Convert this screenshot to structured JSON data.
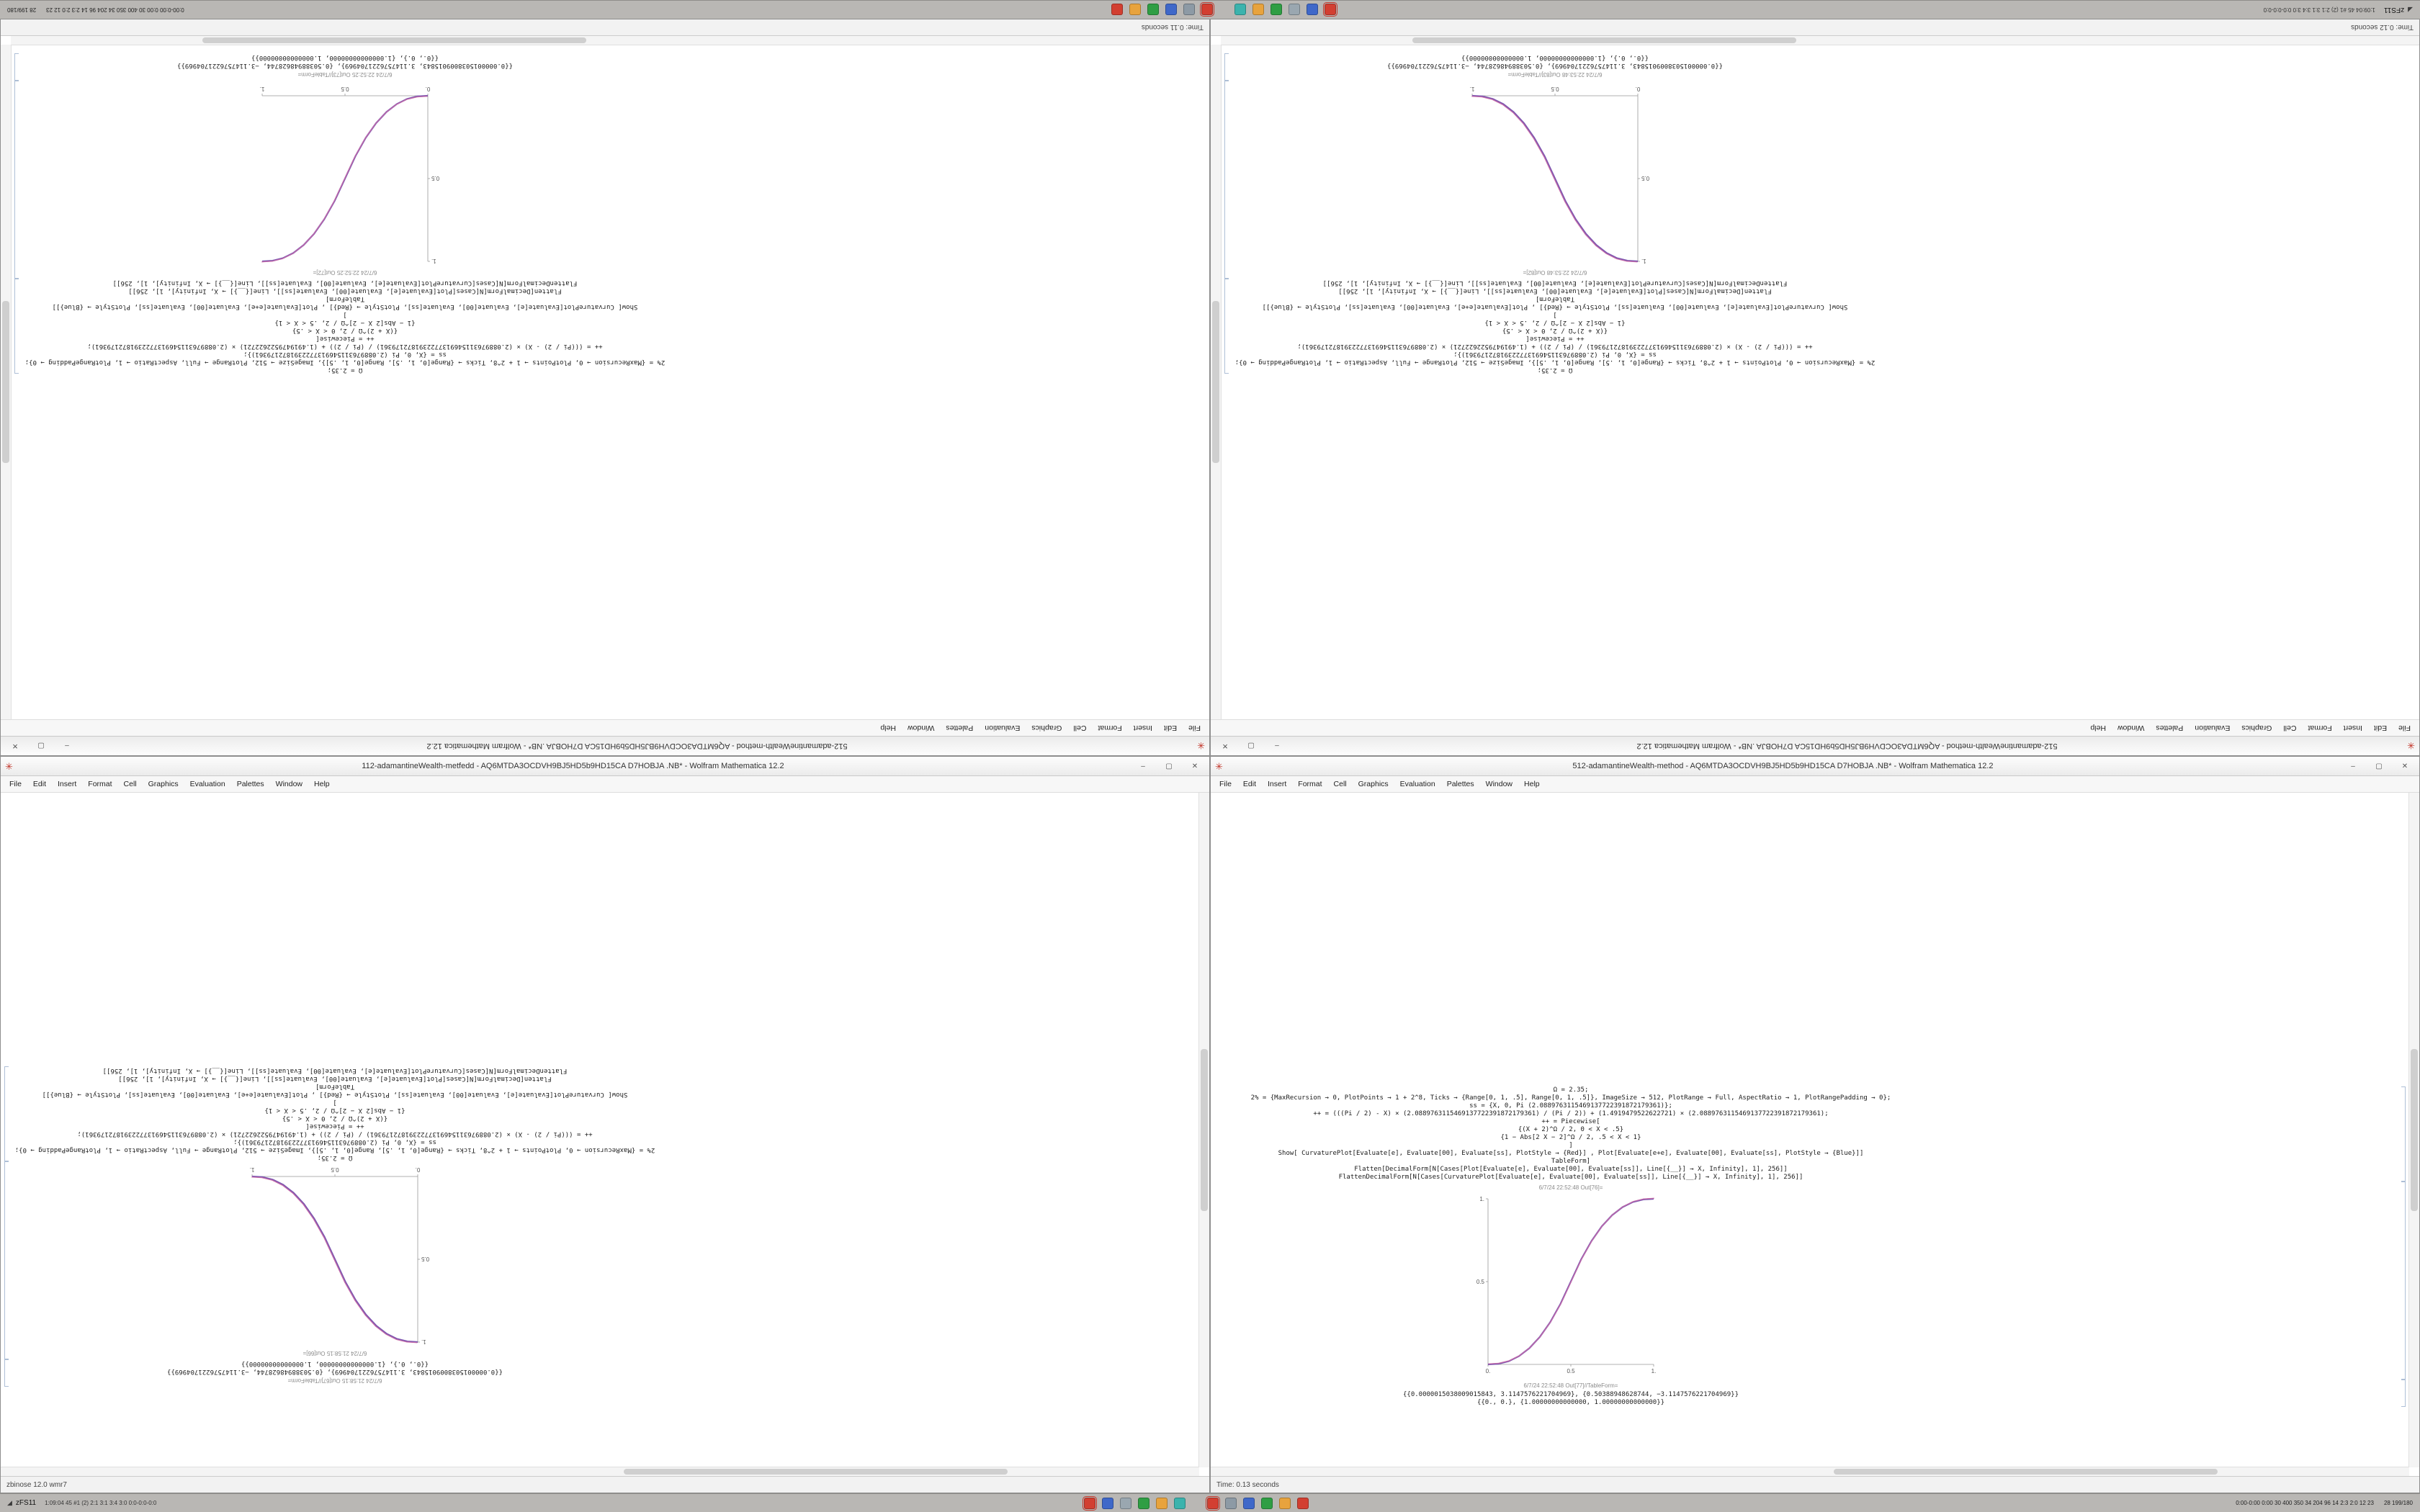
{
  "colors": {
    "curve_pink": "#c76ba8",
    "curve_purple": "#7d57b0",
    "accent_red": "#c43a2e"
  },
  "icons": {
    "app": "✳",
    "minimize": "–",
    "maximize": "▢",
    "close": "✕",
    "start": "◢"
  },
  "desktop": {
    "taskbar": {
      "start_label": "zFS11",
      "start_stats": "1:09:04 45 #1 (2) 2:1 3:1 3:4 3:0 0:0-0:0-0:0",
      "cluster1": [
        "#d23f31",
        "#3f68c9",
        "#9aa7b0",
        "#2f9e44",
        "#e8a33d",
        "#3bb3ad"
      ],
      "cluster2": [
        "#d23f31",
        "#8d9aa5",
        "#3f68c9",
        "#2f9e44",
        "#e8a33d",
        "#d23f31"
      ],
      "tray_text": "0:00-0:00 0:00 30 400 350 34 204 96 14 2:3 2:0 12 23",
      "clock": "28 199/180"
    }
  },
  "window_common": {
    "menu": [
      "File",
      "Edit",
      "Insert",
      "Format",
      "Cell",
      "Graphics",
      "Evaluation",
      "Palettes",
      "Window",
      "Help"
    ]
  },
  "notebooks": [
    {
      "title": "512-adamantineWealth-method - AQ6MTDA3OCDVH9BJ5HD5b9HD15CA D7HOBJA .NB* - Wolfram Mathematica 12.2",
      "status": "Time: 0.11 seconds",
      "rotation": "full",
      "order": "normal",
      "top_gap": 480,
      "col_left": 700,
      "code": [
        "Ω = 2.35;",
        "2% = {MaxRecursion → 0, PlotPoints → 1 + 2^8, Ticks → {Range[0, 1, .5], Range[0, 1, .5]}, ImageSize → 512, PlotRange → Full, AspectRatio → 1, PlotRangePadding → 0};",
        "ss = {X, 0, Pi (2.0889763115469137722391872179361)};",
        "++ = (((Pi / 2) - X) × (2.0889763115469137722391872179361) / (Pi / 2)) + (1.4919479522622721) × (2.0889763115469137722391872179361);",
        "++ = Piecewise[",
        "{(X + 2)^Ω / 2, 0 < X < .5}",
        "{1 − Abs[2 X − 2]^Ω / 2, .5 < X < 1}",
        "]",
        "Show[ CurvaturePlot[Evaluate[e], Evaluate[00], Evaluate[ss], PlotStyle → {Red}] , Plot[Evaluate[e+e], Evaluate[00], Evaluate[ss], PlotStyle → {Blue}]]",
        "TableForm]",
        "Flatten[DecimalForm[N[Cases[Plot[Evaluate[e], Evaluate[00], Evaluate[ss]], Line[{__}] → X, Infinity], 1], 256]]",
        "FlattenDecimalForm[N[Cases[CurvaturePlot[Evaluate[e], Evaluate[00], Evaluate[ss]], Line[{__}] → X, Infinity], 1], 256]]"
      ],
      "out_plot_label": "6/7/24 22:52:25 Out[72]=",
      "out_table_label": "6/7/24 22:52:25 Out[73]//TableForm=",
      "table_rows": [
        "{{0.0000015038009015843, 3.1147576221704969}, {0.50388948628744, −3.1147576221704969}}",
        "{{0., 0.}, {1.00000000000000, 1.00000000000000}}"
      ]
    },
    {
      "title": "512-adamantineWealth-method - AQ6MTDA3OCDVH9BJ5HD5b9HD15CA D7HOBJA .NB* - Wolfram Mathematica 12.2",
      "status": "Time: 0.12 seconds",
      "rotation": "full",
      "order": "normal",
      "top_gap": 480,
      "col_left": 700,
      "code": [
        "Ω = 2.35;",
        "2% = {MaxRecursion → 0, PlotPoints → 1 + 2^8, Ticks → {Range[0, 1, .5], Range[0, 1, .5]}, ImageSize → 512, PlotRange → Full, AspectRatio → 1, PlotRangePadding → 0};",
        "ss = {X, 0, Pi (2.0889763115469137722391872179361)};",
        "++ = (((Pi / 2) - X) × (2.0889763115469137722391872179361) / (Pi / 2)) + (1.4919479522622721) × (2.0889763115469137722391872179361);",
        "++ = Piecewise[",
        "{(X + 2)^Ω / 2, 0 < X < .5}",
        "{1 − Abs[2 X − 2]^Ω / 2, .5 < X < 1}",
        "]",
        "Show[ CurvaturePlot[Evaluate[e], Evaluate[00], Evaluate[ss], PlotStyle → {Red}] , Plot[Evaluate[e+e], Evaluate[00], Evaluate[ss], PlotStyle → {Blue}]]",
        "TableForm]",
        "Flatten[DecimalForm[N[Cases[Plot[Evaluate[e], Evaluate[00], Evaluate[ss]], Line[{__}] → X, Infinity], 1], 256]]",
        "FlattenDecimalForm[N[Cases[CurvaturePlot[Evaluate[e], Evaluate[00], Evaluate[ss]], Line[{__}] → X, Infinity], 1], 256]]"
      ],
      "out_plot_label": "6/7/24 22:53:48 Out[82]=",
      "out_table_label": "6/7/24 22:53:48 Out[83]//TableForm=",
      "table_rows": [
        "{{0.0000015038009015843, 3.1147576221704969}, {0.50388948628744, −3.1147576221704969}}",
        "{{0., 0.}, {1.00000000000000, 1.00000000000000}}"
      ]
    },
    {
      "title": "112-adamantineWealth-metfedd - AQ6MTDA3OCDVH9BJ5HD5b9HD15CA D7HOBJA .NB* - Wolfram Mathematica 12.2",
      "status": "zbinose 12.0 wmr7",
      "rotation": "content",
      "order": "reversed",
      "top_gap": 112,
      "col_left": 700,
      "code": [
        "Ω = 2.35;",
        "2% = {MaxRecursion → 0, PlotPoints → 1 + 2^8, Ticks → {Range[0, 1, .5], Range[0, 1, .5]}, ImageSize → 512, PlotRange → Full, AspectRatio → 1, PlotRangePadding → 0};",
        "ss = {X, 0, Pi (2.0889763115469137722391872179361)};",
        "++ = (((Pi / 2) - X) × (2.0889763115469137722391872179361) / (Pi / 2)) + (1.4919479522622721) × (2.0889763115469137722391872179361);",
        "++ = Piecewise[",
        "{(X + 2)^Ω / 2, 0 < X < .5}",
        "{1 − Abs[2 X − 2]^Ω / 2, .5 < X < 1}",
        "]",
        "Show[ CurvaturePlot[Evaluate[e], Evaluate[00], Evaluate[ss], PlotStyle → {Red}] , Plot[Evaluate[e+e], Evaluate[00], Evaluate[ss], PlotStyle → {Blue}]]",
        "TableForm]",
        "Flatten[DecimalForm[N[Cases[Plot[Evaluate[e], Evaluate[00], Evaluate[ss]], Line[{__}] → X, Infinity], 1], 256]]",
        "FlattenDecimalForm[N[Cases[CurvaturePlot[Evaluate[e], Evaluate[00], Evaluate[ss]], Line[{__}] → X, Infinity], 1], 256]]"
      ],
      "out_plot_label": "6/7/24 21:58:15 Out[66]=",
      "out_table_label": "6/7/24 21:58:15 Out[67]//TableForm=",
      "table_rows": [
        "{{0.0000015038009015843, 3.1147576221704969}, {0.50388948628744, −3.1147576221704969}}",
        "{{0., 0.}, {1.00000000000000, 1.00000000000000}}"
      ]
    },
    {
      "title": "512-adamantineWealth-method - AQ6MTDA3OCDVH9BJ5HD5b9HD15CA D7HOBJA .NB* - Wolfram Mathematica 12.2",
      "status": "Time: 0.13 seconds",
      "rotation": "none",
      "order": "normal",
      "top_gap": 408,
      "col_left": 0,
      "code": [
        "Ω = 2.35;",
        "2% = {MaxRecursion → 0, PlotPoints → 1 + 2^8, Ticks → {Range[0, 1, .5], Range[0, 1, .5]}, ImageSize → 512, PlotRange → Full, AspectRatio → 1, PlotRangePadding → 0};",
        "ss = {X, 0, Pi (2.0889763115469137722391872179361)};",
        "++ = (((Pi / 2) - X) × (2.0889763115469137722391872179361) / (Pi / 2)) + (1.4919479522622721) × (2.0889763115469137722391872179361);",
        "++ = Piecewise[",
        "{(X + 2)^Ω / 2, 0 < X < .5}",
        "{1 − Abs[2 X − 2]^Ω / 2, .5 < X < 1}",
        "]",
        "Show[ CurvaturePlot[Evaluate[e], Evaluate[00], Evaluate[ss], PlotStyle → {Red}] , Plot[Evaluate[e+e], Evaluate[00], Evaluate[ss], PlotStyle → {Blue}]]",
        "TableForm]",
        "Flatten[DecimalForm[N[Cases[Plot[Evaluate[e], Evaluate[00], Evaluate[ss]], Line[{__}] → X, Infinity], 1], 256]]",
        "FlattenDecimalForm[N[Cases[CurvaturePlot[Evaluate[e], Evaluate[00], Evaluate[ss]], Line[{__}] → X, Infinity], 1], 256]]"
      ],
      "out_plot_label": "6/7/24 22:52:48 Out[76]=",
      "out_table_label": "6/7/24 22:52:48 Out[77]//TableForm=",
      "table_rows": [
        "{{0.0000015038009015843, 3.1147576221704969}, {0.50388948628744, −3.1147576221704969}}",
        "{{0., 0.}, {1.00000000000000, 1.00000000000000}}"
      ]
    }
  ],
  "chart_data": [
    {
      "type": "line",
      "title": "Out[72] piecewise power curve (increasing)",
      "x": [
        0,
        0.0625,
        0.125,
        0.1875,
        0.25,
        0.3125,
        0.375,
        0.4375,
        0.5,
        0.5625,
        0.625,
        0.6875,
        0.75,
        0.8125,
        0.875,
        0.9375,
        1
      ],
      "series": [
        {
          "name": "blended Red+Blue piecewise curve",
          "values": [
            0,
            0.0038,
            0.0192,
            0.0499,
            0.0981,
            0.1657,
            0.2543,
            0.3653,
            0.5,
            0.6347,
            0.7457,
            0.8343,
            0.9019,
            0.9501,
            0.9808,
            0.9962,
            1
          ]
        }
      ],
      "xlim": [
        0,
        1
      ],
      "ylim": [
        0,
        1
      ],
      "x_ticks": [
        {
          "v": 0,
          "label": "0."
        },
        {
          "v": 0.5,
          "label": "0.5"
        },
        {
          "v": 1,
          "label": "1."
        }
      ],
      "y_ticks": [
        {
          "v": 0.5,
          "label": "0.5"
        },
        {
          "v": 1,
          "label": "1."
        }
      ],
      "colors": [
        "#c76ba8",
        "#7d57b0"
      ]
    },
    {
      "type": "line",
      "title": "Out[82] piecewise power curve (decreasing)",
      "x": [
        0,
        0.0625,
        0.125,
        0.1875,
        0.25,
        0.3125,
        0.375,
        0.4375,
        0.5,
        0.5625,
        0.625,
        0.6875,
        0.75,
        0.8125,
        0.875,
        0.9375,
        1
      ],
      "series": [
        {
          "name": "blended Red+Blue piecewise curve",
          "values": [
            1,
            0.9962,
            0.9808,
            0.9501,
            0.9019,
            0.8343,
            0.7457,
            0.6347,
            0.5,
            0.3653,
            0.2543,
            0.1657,
            0.0981,
            0.0499,
            0.0192,
            0.0038,
            0
          ]
        }
      ],
      "xlim": [
        0,
        1
      ],
      "ylim": [
        0,
        1
      ],
      "x_ticks": [
        {
          "v": 0,
          "label": "0."
        },
        {
          "v": 0.5,
          "label": "0.5"
        },
        {
          "v": 1,
          "label": "1."
        }
      ],
      "y_ticks": [
        {
          "v": 0.5,
          "label": "0.5"
        },
        {
          "v": 1,
          "label": "1."
        }
      ],
      "colors": [
        "#c76ba8",
        "#7d57b0"
      ]
    },
    {
      "type": "line",
      "title": "Out[66] piecewise power curve (decreasing)",
      "x": [
        0,
        0.0625,
        0.125,
        0.1875,
        0.25,
        0.3125,
        0.375,
        0.4375,
        0.5,
        0.5625,
        0.625,
        0.6875,
        0.75,
        0.8125,
        0.875,
        0.9375,
        1
      ],
      "series": [
        {
          "name": "blended Red+Blue piecewise curve",
          "values": [
            1,
            0.9962,
            0.9808,
            0.9501,
            0.9019,
            0.8343,
            0.7457,
            0.6347,
            0.5,
            0.3653,
            0.2543,
            0.1657,
            0.0981,
            0.0499,
            0.0192,
            0.0038,
            0
          ]
        }
      ],
      "xlim": [
        0,
        1
      ],
      "ylim": [
        0,
        1
      ],
      "x_ticks": [
        {
          "v": 0,
          "label": "0."
        },
        {
          "v": 0.5,
          "label": "0.5"
        },
        {
          "v": 1,
          "label": "1."
        }
      ],
      "y_ticks": [
        {
          "v": 0.5,
          "label": "0.5"
        },
        {
          "v": 1,
          "label": "1."
        }
      ],
      "colors": [
        "#c76ba8",
        "#7d57b0"
      ]
    },
    {
      "type": "line",
      "title": "Out[76] piecewise power curve (increasing)",
      "x": [
        0,
        0.0625,
        0.125,
        0.1875,
        0.25,
        0.3125,
        0.375,
        0.4375,
        0.5,
        0.5625,
        0.625,
        0.6875,
        0.75,
        0.8125,
        0.875,
        0.9375,
        1
      ],
      "series": [
        {
          "name": "blended Red+Blue piecewise curve",
          "values": [
            0,
            0.0038,
            0.0192,
            0.0499,
            0.0981,
            0.1657,
            0.2543,
            0.3653,
            0.5,
            0.6347,
            0.7457,
            0.8343,
            0.9019,
            0.9501,
            0.9808,
            0.9962,
            1
          ]
        }
      ],
      "xlim": [
        0,
        1
      ],
      "ylim": [
        0,
        1
      ],
      "x_ticks": [
        {
          "v": 0,
          "label": "0."
        },
        {
          "v": 0.5,
          "label": "0.5"
        },
        {
          "v": 1,
          "label": "1."
        }
      ],
      "y_ticks": [
        {
          "v": 0.5,
          "label": "0.5"
        },
        {
          "v": 1,
          "label": "1."
        }
      ],
      "colors": [
        "#c76ba8",
        "#7d57b0"
      ]
    }
  ]
}
